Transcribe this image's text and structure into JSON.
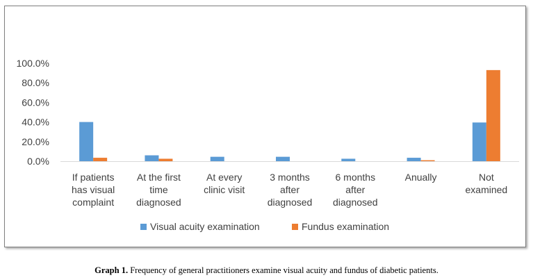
{
  "chart_data": {
    "type": "bar",
    "categories": [
      [
        "If patients",
        "has visual",
        "complaint"
      ],
      [
        "At the first",
        "time",
        "diagnosed"
      ],
      [
        "At every",
        "clinic visit"
      ],
      [
        "3 months",
        "after",
        "diagnosed"
      ],
      [
        "6 months",
        "after",
        "diagnosed"
      ],
      [
        "Anually"
      ],
      [
        "Not",
        "examined"
      ]
    ],
    "series": [
      {
        "name": "Visual acuity examination",
        "color": "#5b9bd5",
        "values": [
          40.0,
          6.0,
          4.5,
          4.5,
          2.5,
          3.5,
          39.5
        ]
      },
      {
        "name": "Fundus examination",
        "color": "#ed7d31",
        "values": [
          3.5,
          2.5,
          0.0,
          0.0,
          0.0,
          1.0,
          93.0
        ]
      }
    ],
    "yticks": [
      "0.0%",
      "20.0%",
      "40.0%",
      "60.0%",
      "80.0%",
      "100.0%"
    ],
    "ylim": [
      0,
      100
    ],
    "grid": false,
    "legend_position": "bottom"
  },
  "caption": {
    "label": "Graph 1.",
    "text": " Frequency of general practitioners examine visual acuity and fundus of diabetic patients."
  }
}
